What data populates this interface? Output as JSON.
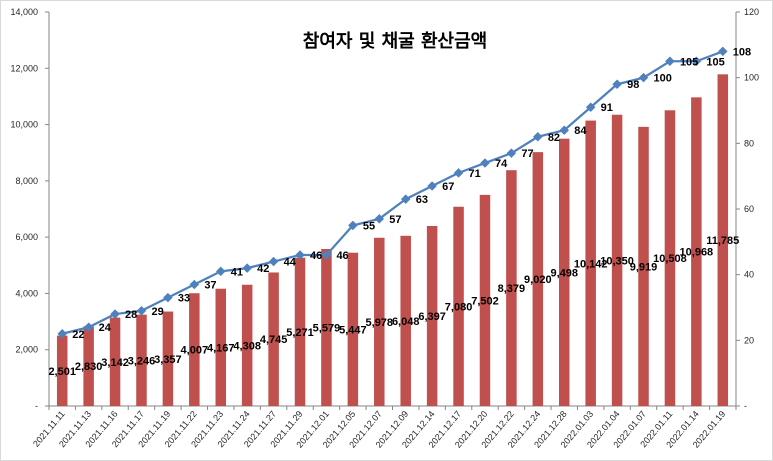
{
  "chart_data": {
    "type": "bar",
    "title": "참여자 및 채굴 환산금액",
    "categories": [
      "2021.11.11",
      "2021.11.13",
      "2021.11.16",
      "2021.11.17",
      "2021.11.19",
      "2021.11.22",
      "2021.11.23",
      "2021.11.24",
      "2021.11.27",
      "2021.11.29",
      "2021.12.01",
      "2021.12.05",
      "2021.12.07",
      "2021.12.09",
      "2021.12.14",
      "2021.12.17",
      "2021.12.20",
      "2021.12.22",
      "2021.12.24",
      "2021.12.28",
      "2022.01.03",
      "2022.01.04",
      "2022.01.07",
      "2022.01.11",
      "2022.01.14",
      "2022.01.19"
    ],
    "series": [
      {
        "type": "bar",
        "axis": "left",
        "color": "#c0504d",
        "values": [
          2501,
          2830,
          3142,
          3246,
          3357,
          4007,
          4167,
          4308,
          4745,
          5271,
          5579,
          5447,
          5978,
          6048,
          6397,
          7080,
          7502,
          8379,
          9020,
          9498,
          10142,
          10350,
          9919,
          10508,
          10968,
          11785
        ],
        "data_labels": [
          "2,501",
          "2,830",
          "3,142",
          "3,246",
          "3,357",
          "4,007",
          "4,167",
          "4,308",
          "4,745",
          "5,271",
          "5,579",
          "5,447",
          "5,978",
          "6,048",
          "6,397",
          "7,080",
          "7,502",
          "8,379",
          "9,020",
          "9,498",
          "10,142",
          "10,350",
          "9,919",
          "10,508",
          "10,968",
          "11,785"
        ]
      },
      {
        "type": "line",
        "axis": "right",
        "color": "#4f81bd",
        "marker": "diamond",
        "values": [
          22,
          24,
          28,
          29,
          33,
          37,
          41,
          42,
          44,
          46,
          46,
          55,
          57,
          63,
          67,
          71,
          74,
          77,
          82,
          84,
          91,
          98,
          100,
          105,
          105,
          108
        ]
      }
    ],
    "y_left": {
      "min": 0,
      "max": 14000,
      "ticks": [
        {
          "value": 0,
          "label": "-"
        },
        {
          "value": 2000,
          "label": "2,000"
        },
        {
          "value": 4000,
          "label": "4,000"
        },
        {
          "value": 6000,
          "label": "6,000"
        },
        {
          "value": 8000,
          "label": "8,000"
        },
        {
          "value": 10000,
          "label": "10,000"
        },
        {
          "value": 12000,
          "label": "12,000"
        },
        {
          "value": 14000,
          "label": "14,000"
        }
      ]
    },
    "y_right": {
      "min": 0,
      "max": 120,
      "ticks": [
        {
          "value": 0,
          "label": "-"
        },
        {
          "value": 20,
          "label": "20"
        },
        {
          "value": 40,
          "label": "40"
        },
        {
          "value": 60,
          "label": "60"
        },
        {
          "value": 80,
          "label": "80"
        },
        {
          "value": 100,
          "label": "100"
        },
        {
          "value": 120,
          "label": "120"
        }
      ]
    },
    "grid": false,
    "legend": "none"
  }
}
